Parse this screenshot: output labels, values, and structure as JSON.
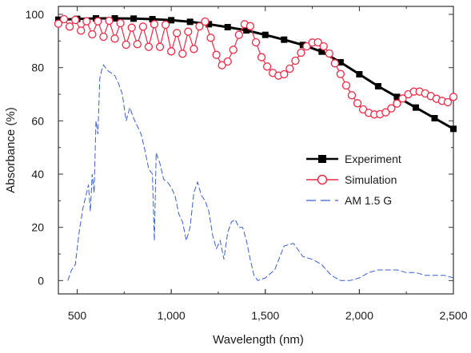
{
  "chart_data": {
    "type": "line",
    "xlabel": "Wavelength (nm)",
    "ylabel": "Absorbance (%)",
    "xlim": [
      400,
      2500
    ],
    "ylim": [
      -5,
      103
    ],
    "xticks": [
      500,
      1000,
      1500,
      2000,
      2500
    ],
    "xtick_labels": [
      "500",
      "1,000",
      "1,500",
      "2,000",
      "2,500"
    ],
    "yticks": [
      0,
      20,
      40,
      60,
      80,
      100
    ],
    "ytick_labels": [
      "0",
      "20",
      "40",
      "60",
      "80",
      "100"
    ],
    "grid": false,
    "legend_position": "center-right",
    "series": [
      {
        "name": "Experiment",
        "style": "solid line, filled square markers",
        "color": "#000000",
        "x": [
          400,
          500,
          600,
          700,
          800,
          900,
          1000,
          1100,
          1200,
          1300,
          1400,
          1500,
          1600,
          1700,
          1800,
          1900,
          2000,
          2100,
          2200,
          2300,
          2400,
          2500
        ],
        "y": [
          98,
          98.3,
          98.5,
          98.5,
          98.4,
          98.2,
          97.8,
          97.2,
          96.3,
          95.2,
          94,
          92.3,
          90.5,
          88.5,
          86,
          82,
          77.5,
          73,
          69,
          65,
          61,
          57
        ]
      },
      {
        "name": "Simulation",
        "style": "solid line, open circle markers",
        "color": "#ee2a46",
        "x": [
          400,
          430,
          460,
          490,
          520,
          550,
          580,
          610,
          640,
          670,
          700,
          730,
          760,
          790,
          820,
          850,
          880,
          910,
          940,
          970,
          1000,
          1030,
          1060,
          1090,
          1120,
          1150,
          1180,
          1210,
          1240,
          1270,
          1300,
          1330,
          1360,
          1390,
          1420,
          1450,
          1480,
          1510,
          1540,
          1570,
          1600,
          1630,
          1660,
          1690,
          1720,
          1750,
          1780,
          1810,
          1840,
          1870,
          1900,
          1930,
          1960,
          1990,
          2020,
          2050,
          2080,
          2110,
          2140,
          2170,
          2200,
          2230,
          2260,
          2290,
          2320,
          2350,
          2380,
          2410,
          2440,
          2470,
          2500
        ],
        "y": [
          96.5,
          98.2,
          95.4,
          97.9,
          93.9,
          97.4,
          92.5,
          97.4,
          91.6,
          97.6,
          90.9,
          96.7,
          88.6,
          95,
          88.8,
          95.4,
          87.8,
          96.3,
          87.8,
          96.1,
          86.1,
          93,
          85.2,
          93.5,
          87,
          95.5,
          97.3,
          91.2,
          84.8,
          80.9,
          82.3,
          86.7,
          92.3,
          96.3,
          95.6,
          89.5,
          83.9,
          80.4,
          78,
          77,
          77.5,
          79.6,
          82.6,
          85.6,
          88,
          89.4,
          89.5,
          88,
          85.3,
          81.6,
          77.6,
          73.3,
          69.6,
          66.6,
          64.3,
          63,
          62.4,
          62.5,
          63.2,
          64.7,
          66.5,
          68.4,
          70,
          71,
          71,
          70.3,
          69.3,
          68.3,
          67.5,
          67,
          69
        ]
      },
      {
        "name": "AM 1.5 G",
        "style": "dashed line",
        "color": "#3a5fd0",
        "x": [
          450,
          470,
          490,
          510,
          530,
          550,
          560,
          570,
          580,
          590,
          600,
          610,
          620,
          630,
          640,
          650,
          660,
          680,
          700,
          720,
          740,
          760,
          780,
          800,
          820,
          840,
          860,
          880,
          900,
          910,
          920,
          940,
          960,
          980,
          1000,
          1020,
          1040,
          1060,
          1080,
          1100,
          1120,
          1140,
          1160,
          1180,
          1200,
          1220,
          1240,
          1260,
          1280,
          1300,
          1320,
          1340,
          1360,
          1380,
          1400,
          1420,
          1440,
          1460,
          1500,
          1550,
          1600,
          1650,
          1700,
          1750,
          1800,
          1850,
          1900,
          1950,
          2000,
          2050,
          2100,
          2150,
          2200,
          2250,
          2300,
          2350,
          2400,
          2450,
          2500
        ],
        "y": [
          0,
          4,
          6,
          18,
          27,
          33,
          36,
          26,
          40,
          33,
          60,
          55,
          76,
          79,
          81,
          80,
          79,
          78,
          77,
          74,
          70,
          60,
          65,
          61,
          58,
          55,
          49,
          42,
          40,
          15,
          48,
          44,
          38,
          37,
          35,
          32,
          25,
          22,
          15,
          20,
          33,
          37,
          32,
          30,
          26,
          17,
          12,
          15,
          8,
          18,
          22,
          23,
          20,
          20,
          15,
          8,
          2,
          0,
          1,
          4,
          13,
          14,
          9,
          8,
          6,
          2,
          0,
          0,
          1,
          3,
          4,
          4,
          4,
          3,
          3,
          2,
          2,
          2,
          1
        ]
      }
    ]
  }
}
